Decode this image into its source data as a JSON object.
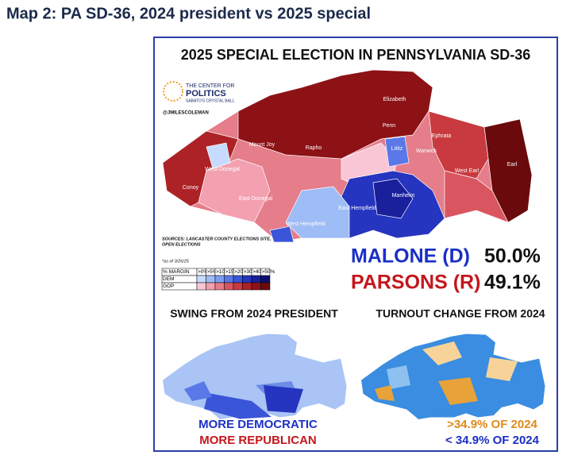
{
  "header": {
    "title": "Map 2: PA SD-36, 2024 president vs 2025 special"
  },
  "map": {
    "title": "2025 SPECIAL ELECTION IN PENNSYLVANIA SD-36",
    "logo": [
      "THE CENTER FOR",
      "POLITICS",
      "SABATO'S CRYSTAL BALL"
    ],
    "credit": "@JMILESCOLEMAN",
    "towns": [
      "Elizabeth",
      "Penn",
      "Mount Joy",
      "Rapho",
      "Lititz",
      "Warwick",
      "Ephrata",
      "West Donegal",
      "Conoy",
      "East Donegal",
      "Manheim",
      "West Earl",
      "Earl",
      "East Hempfield",
      "West Hempfield"
    ],
    "sources": [
      "SOURCES: LANCASTER COUNTY ELECTIONS SITE,",
      "OPEN ELECTIONS"
    ],
    "as_of": "*as of 3/26/25",
    "legend": {
      "header": [
        "% MARGIN",
        ">0%",
        ">5%",
        ">10%",
        ">15%",
        ">20%",
        ">30%",
        ">40%",
        ">50%"
      ],
      "rows": [
        "DEM",
        "GOP"
      ]
    },
    "results": [
      {
        "candidate": "MALONE (D)",
        "share": "50.0%"
      },
      {
        "candidate": "PARSONS (R)",
        "share": "49.1%"
      }
    ]
  },
  "swing_map": {
    "title": "SWING FROM 2024 PRESIDENT",
    "legend": [
      "MORE DEMOCRATIC",
      "MORE REPUBLICAN"
    ]
  },
  "turnout_map": {
    "title": "TURNOUT CHANGE FROM 2024",
    "legend": [
      ">34.9% OF 2024",
      "< 34.9% OF 2024"
    ]
  }
}
